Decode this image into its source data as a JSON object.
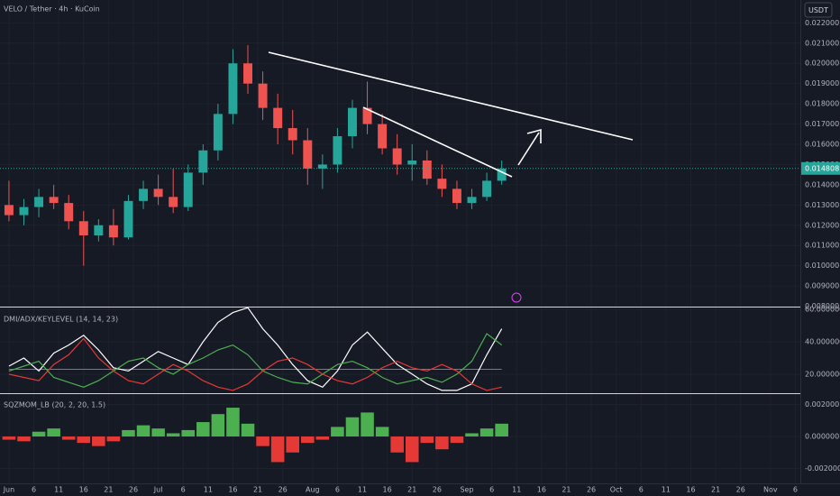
{
  "toolbar": {
    "currency": "USDT"
  },
  "chart_data": [
    {
      "type": "candlestick",
      "title": "VELO / Tether · 4h · KuCoin",
      "x": [
        0,
        3,
        6,
        9,
        12,
        15,
        18,
        21,
        24,
        27,
        30,
        33,
        36,
        39,
        42,
        45,
        48,
        51,
        54,
        57,
        60,
        63,
        66,
        69,
        72,
        75,
        78,
        81,
        84,
        87,
        90,
        93,
        96,
        99
      ],
      "open": [
        0.013,
        0.0125,
        0.0129,
        0.0134,
        0.0131,
        0.0122,
        0.0115,
        0.012,
        0.0114,
        0.0132,
        0.0138,
        0.0134,
        0.0129,
        0.0146,
        0.0157,
        0.0175,
        0.02,
        0.019,
        0.0178,
        0.0168,
        0.0162,
        0.0148,
        0.015,
        0.0164,
        0.0178,
        0.017,
        0.0158,
        0.015,
        0.0152,
        0.0143,
        0.0138,
        0.0131,
        0.0134,
        0.0142
      ],
      "high": [
        0.0142,
        0.0133,
        0.0138,
        0.014,
        0.0135,
        0.0127,
        0.0123,
        0.0128,
        0.0135,
        0.0142,
        0.0145,
        0.0148,
        0.015,
        0.016,
        0.018,
        0.0207,
        0.0209,
        0.0196,
        0.0185,
        0.0177,
        0.0168,
        0.0155,
        0.0168,
        0.0182,
        0.0191,
        0.0175,
        0.0165,
        0.016,
        0.0157,
        0.015,
        0.0142,
        0.0138,
        0.0146,
        0.0152
      ],
      "low": [
        0.0122,
        0.012,
        0.0124,
        0.0128,
        0.0118,
        0.01,
        0.0112,
        0.011,
        0.0113,
        0.0128,
        0.013,
        0.0126,
        0.0127,
        0.014,
        0.0152,
        0.017,
        0.0185,
        0.0172,
        0.016,
        0.0155,
        0.014,
        0.0138,
        0.0146,
        0.0158,
        0.0165,
        0.0155,
        0.0145,
        0.0142,
        0.014,
        0.0134,
        0.0128,
        0.0128,
        0.0132,
        0.014
      ],
      "close": [
        0.0125,
        0.0129,
        0.0134,
        0.0131,
        0.0122,
        0.0115,
        0.012,
        0.0114,
        0.0132,
        0.0138,
        0.0134,
        0.0129,
        0.0146,
        0.0157,
        0.0175,
        0.02,
        0.019,
        0.0178,
        0.0168,
        0.0162,
        0.0148,
        0.015,
        0.0164,
        0.0178,
        0.017,
        0.0158,
        0.015,
        0.0152,
        0.0143,
        0.0138,
        0.0131,
        0.0134,
        0.0142,
        0.0148
      ],
      "up_color": "#26a69a",
      "down_color": "#ef5350",
      "last_price": 0.014808,
      "ylim": [
        0.00798,
        0.02313
      ],
      "yticks": [
        {
          "value": 0.022,
          "label": "0.022000"
        },
        {
          "value": 0.021,
          "label": "0.021000"
        },
        {
          "value": 0.02,
          "label": "0.020000"
        },
        {
          "value": 0.019,
          "label": "0.019000"
        },
        {
          "value": 0.018,
          "label": "0.018000"
        },
        {
          "value": 0.017,
          "label": "0.017000"
        },
        {
          "value": 0.016,
          "label": "0.016000"
        },
        {
          "value": 0.015,
          "label": "0.015000"
        },
        {
          "value": 0.014,
          "label": "0.014000"
        },
        {
          "value": 0.013,
          "label": "0.013000"
        },
        {
          "value": 0.012,
          "label": "0.012000"
        },
        {
          "value": 0.011,
          "label": "0.011000"
        },
        {
          "value": 0.01,
          "label": "0.010000"
        },
        {
          "value": 0.009,
          "label": "0.009000"
        },
        {
          "value": 0.008,
          "label": "0.008000"
        }
      ],
      "grid": true
    },
    {
      "type": "line",
      "title": "DMI/ADX/KEYLEVEL (14, 14, 23)",
      "x": [
        0,
        3,
        6,
        9,
        12,
        15,
        18,
        21,
        24,
        27,
        30,
        33,
        36,
        39,
        42,
        45,
        48,
        51,
        54,
        57,
        60,
        63,
        66,
        69,
        72,
        75,
        78,
        81,
        84,
        87,
        90,
        93,
        96,
        99
      ],
      "series": [
        {
          "color": "#ffffff",
          "values": [
            25,
            30,
            22,
            33,
            38,
            44,
            35,
            24,
            22,
            28,
            34,
            30,
            26,
            40,
            52,
            58,
            61,
            48,
            38,
            26,
            16,
            12,
            22,
            38,
            46,
            36,
            26,
            20,
            14,
            10,
            10,
            14,
            32,
            48
          ]
        },
        {
          "color": "#4caf50",
          "values": [
            22,
            25,
            28,
            18,
            15,
            12,
            16,
            22,
            28,
            30,
            24,
            20,
            26,
            30,
            35,
            38,
            32,
            22,
            18,
            15,
            14,
            20,
            26,
            28,
            24,
            18,
            14,
            16,
            18,
            15,
            20,
            28,
            45,
            38
          ]
        },
        {
          "color": "#e53935",
          "values": [
            20,
            18,
            16,
            26,
            32,
            42,
            30,
            22,
            16,
            14,
            20,
            26,
            22,
            16,
            12,
            10,
            14,
            22,
            28,
            30,
            26,
            20,
            16,
            14,
            18,
            24,
            28,
            24,
            22,
            26,
            22,
            14,
            10,
            12
          ]
        }
      ],
      "key_level": 23,
      "ylim": [
        8.3,
        61.1
      ],
      "yticks": [
        {
          "value": 60,
          "label": "60.000000"
        },
        {
          "value": 40,
          "label": "40.000000"
        },
        {
          "value": 20,
          "label": "20.000000"
        }
      ]
    },
    {
      "type": "histogram",
      "title": "SQZMOM_LB (20, 2, 20, 1.5)",
      "x": [
        0,
        3,
        6,
        9,
        12,
        15,
        18,
        21,
        24,
        27,
        30,
        33,
        36,
        39,
        42,
        45,
        48,
        51,
        54,
        57,
        60,
        63,
        66,
        69,
        72,
        75,
        78,
        81,
        84,
        87,
        90,
        93,
        96,
        99
      ],
      "values": [
        -0.0002,
        -0.0003,
        0.0003,
        0.0005,
        -0.0002,
        -0.0004,
        -0.0006,
        -0.0003,
        0.0004,
        0.0007,
        0.0005,
        0.0002,
        0.0004,
        0.0009,
        0.0014,
        0.0018,
        0.0008,
        -0.0006,
        -0.0016,
        -0.001,
        -0.0004,
        -0.0002,
        0.0006,
        0.0012,
        0.0015,
        0.0006,
        -0.001,
        -0.0016,
        -0.0004,
        -0.0008,
        -0.0004,
        0.0002,
        0.0005,
        0.0008
      ],
      "pos_color": "#4caf50",
      "neg_color": "#e53935",
      "ylim": [
        -0.00293,
        0.00265
      ],
      "yticks": [
        {
          "value": 0.002,
          "label": "0.002000"
        },
        {
          "value": 0,
          "label": "0.000000"
        },
        {
          "value": -0.002,
          "label": "-0.002000"
        }
      ],
      "xlim": [
        -1.8,
        159
      ],
      "xticks": [
        {
          "value": 0,
          "label": "Jun"
        },
        {
          "value": 5,
          "label": "6"
        },
        {
          "value": 10,
          "label": "11"
        },
        {
          "value": 15,
          "label": "16"
        },
        {
          "value": 20,
          "label": "21"
        },
        {
          "value": 25,
          "label": "26"
        },
        {
          "value": 30,
          "label": "Jul"
        },
        {
          "value": 35,
          "label": "6"
        },
        {
          "value": 40,
          "label": "11"
        },
        {
          "value": 45,
          "label": "16"
        },
        {
          "value": 50,
          "label": "21"
        },
        {
          "value": 55,
          "label": "26"
        },
        {
          "value": 61,
          "label": "Aug"
        },
        {
          "value": 66,
          "label": "6"
        },
        {
          "value": 71,
          "label": "11"
        },
        {
          "value": 76,
          "label": "16"
        },
        {
          "value": 81,
          "label": "21"
        },
        {
          "value": 86,
          "label": "26"
        },
        {
          "value": 92,
          "label": "Sep"
        },
        {
          "value": 97,
          "label": "6"
        },
        {
          "value": 102,
          "label": "11"
        },
        {
          "value": 107,
          "label": "16"
        },
        {
          "value": 112,
          "label": "21"
        },
        {
          "value": 117,
          "label": "26"
        },
        {
          "value": 122,
          "label": "Oct"
        },
        {
          "value": 127,
          "label": "6"
        },
        {
          "value": 132,
          "label": "11"
        },
        {
          "value": 137,
          "label": "16"
        },
        {
          "value": 142,
          "label": "21"
        },
        {
          "value": 147,
          "label": "26"
        },
        {
          "value": 153,
          "label": "Nov"
        },
        {
          "value": 158,
          "label": "6"
        }
      ]
    }
  ]
}
